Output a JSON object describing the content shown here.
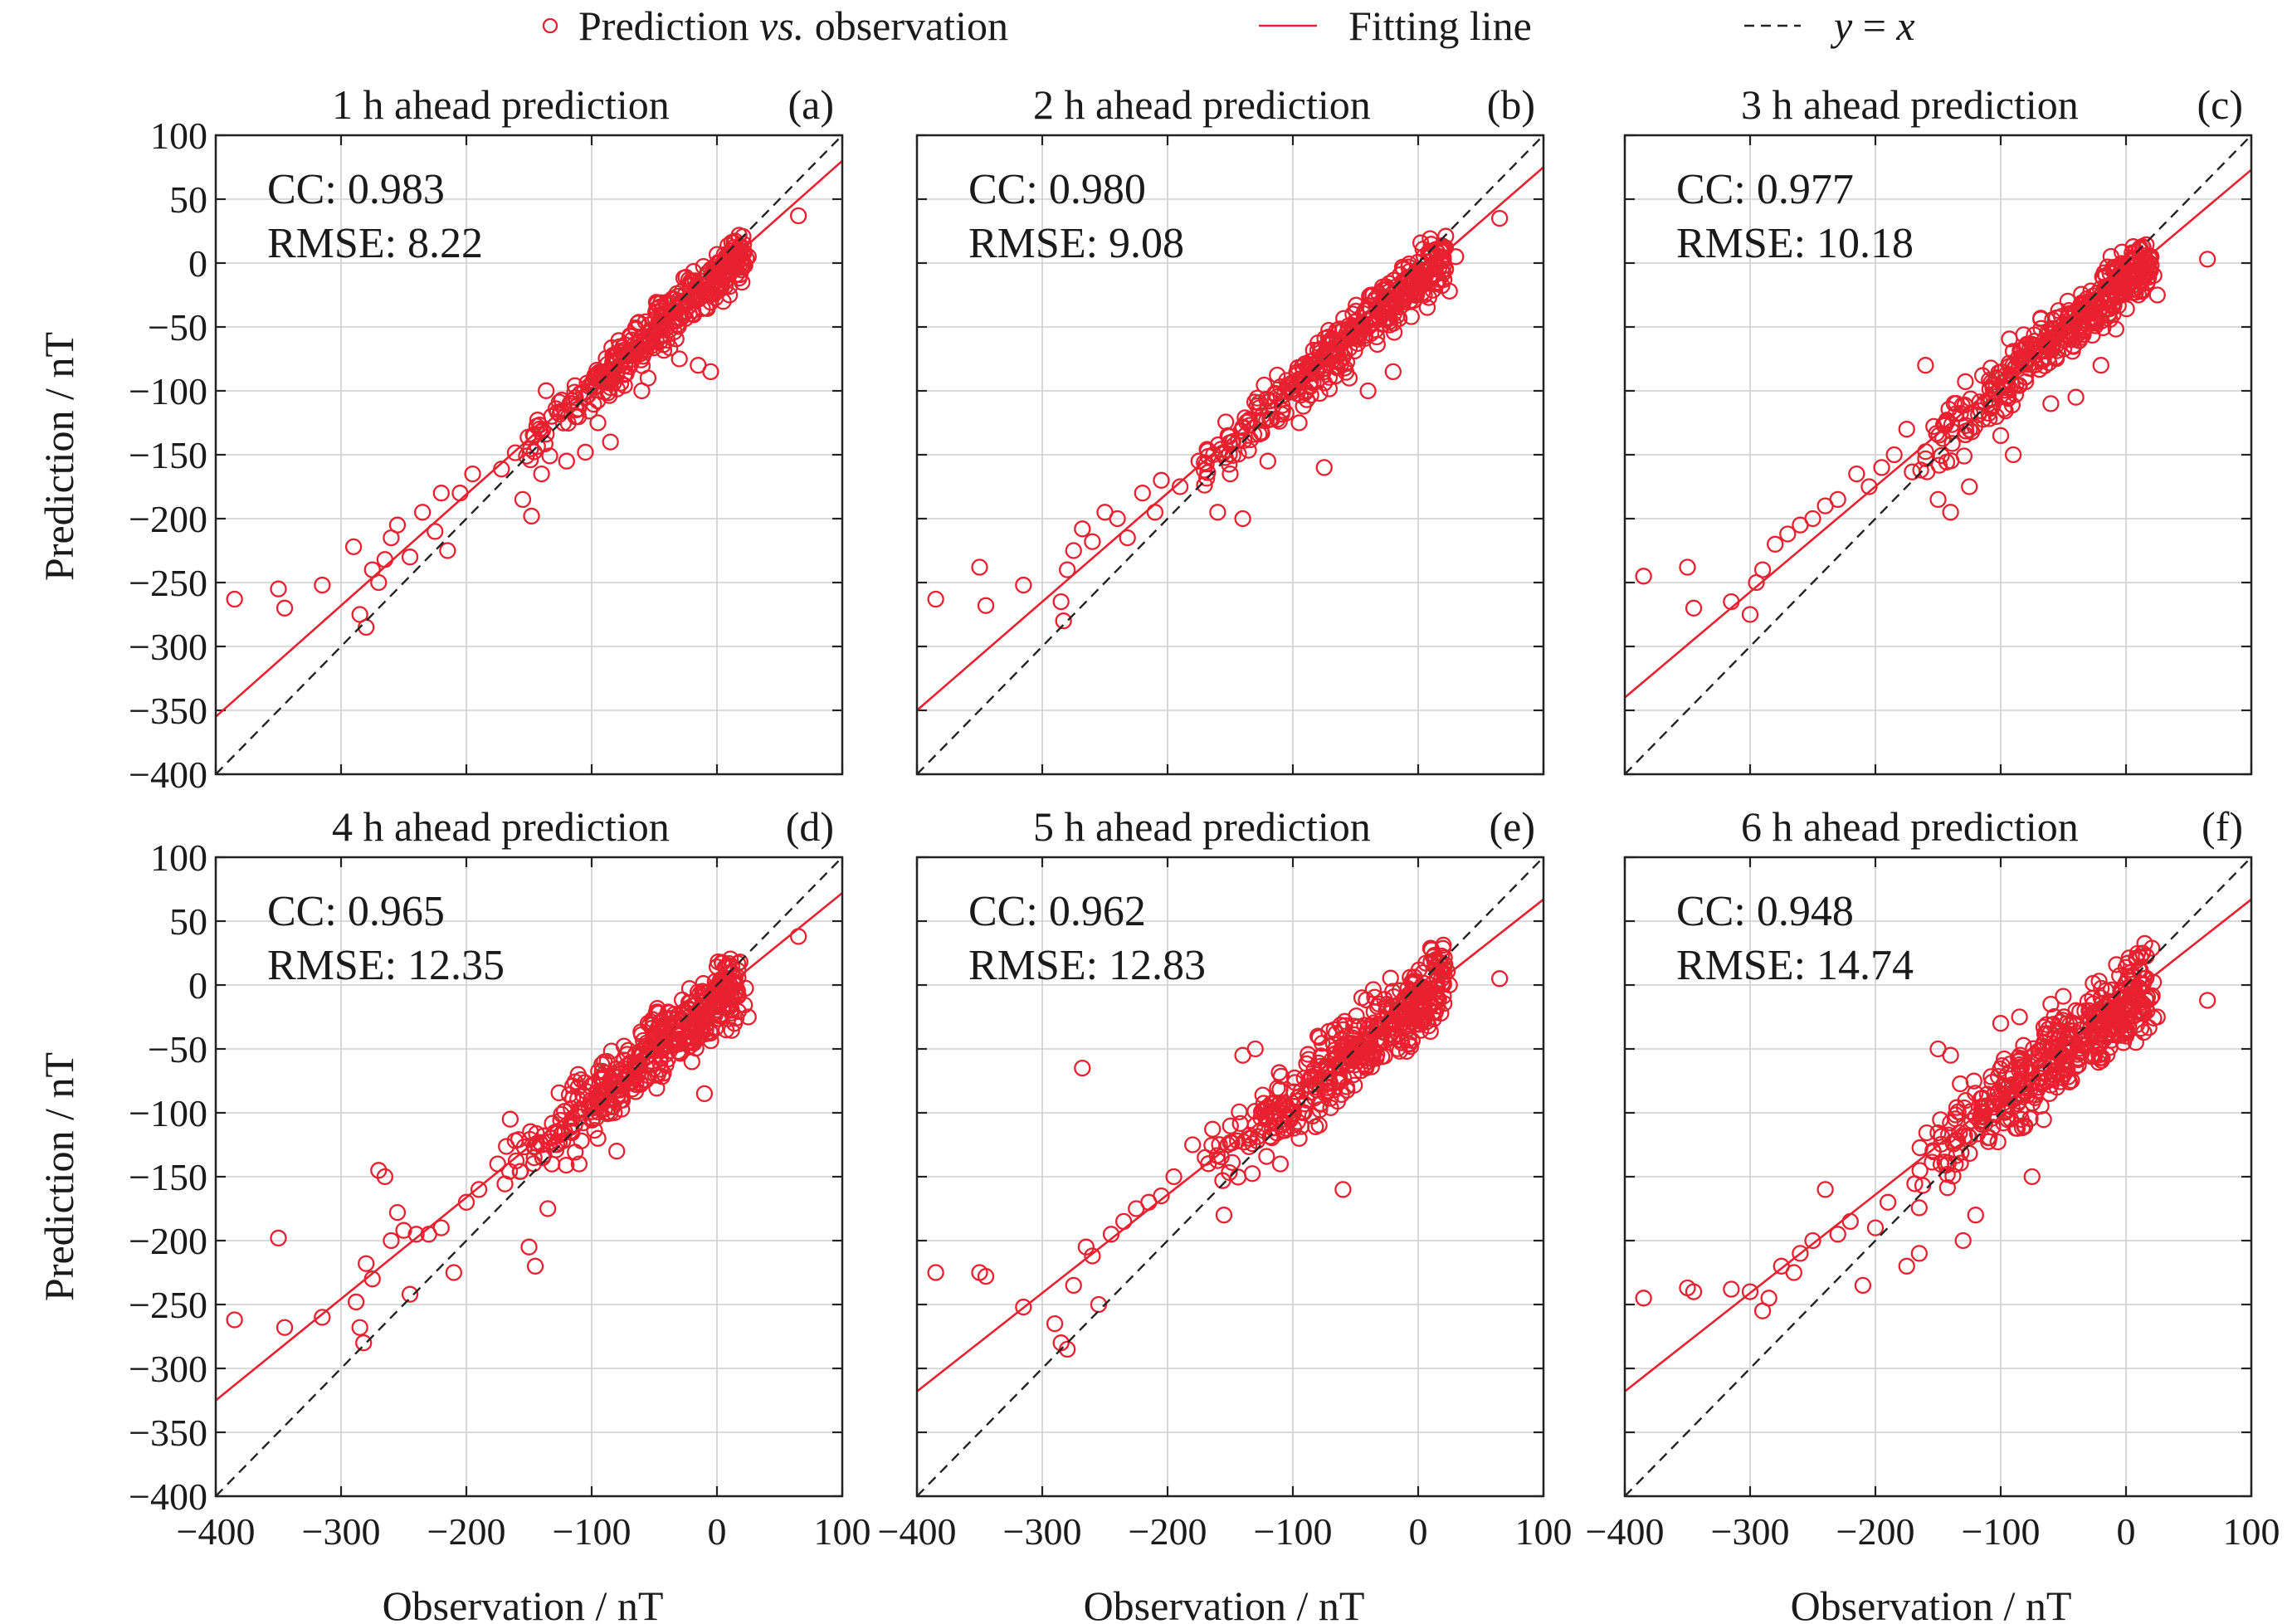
{
  "legend": {
    "points": "Prediction vs. observation",
    "points_prefix": "Prediction ",
    "points_italic": "vs.",
    "points_suffix": " observation",
    "fit": "Fitting line",
    "identity": "y = x",
    "identity_y": "y",
    "identity_eq": " = ",
    "identity_x": "x"
  },
  "colors": {
    "points": "#e8202f",
    "fit": "#e8202f",
    "identity": "#222222",
    "grid": "#cfcfcf"
  },
  "axes": {
    "xlabel": "Observation / nT",
    "ylabel": "Prediction / nT",
    "xlim": [
      -400,
      100
    ],
    "ylim": [
      -400,
      100
    ],
    "xticks": [
      -400,
      -300,
      -200,
      -100,
      0,
      100
    ],
    "yticks": [
      -400,
      -350,
      -300,
      -250,
      -200,
      -150,
      -100,
      -50,
      0,
      50,
      100
    ],
    "xtick_labels": [
      "−400",
      "−300",
      "−200",
      "−100",
      "0",
      "100"
    ],
    "ytick_labels": [
      "−400",
      "−350",
      "−300",
      "−250",
      "−200",
      "−150",
      "−100",
      "−50",
      "0",
      "50",
      "100"
    ],
    "grid": true
  },
  "chart_data": [
    {
      "type": "scatter",
      "panel": "(a)",
      "title": "1 h ahead prediction",
      "cc_text": "CC: 0.983",
      "rmse_text": "RMSE: 8.22",
      "fit": [
        [
          -400,
          -355
        ],
        [
          100,
          80
        ]
      ],
      "anchors": [
        [
          -385,
          -263
        ],
        [
          -350,
          -255
        ],
        [
          -345,
          -270
        ],
        [
          -315,
          -252
        ],
        [
          -290,
          -222
        ],
        [
          -285,
          -275
        ],
        [
          -280,
          -285
        ],
        [
          -275,
          -240
        ],
        [
          -270,
          -250
        ],
        [
          -265,
          -232
        ],
        [
          -260,
          -215
        ],
        [
          -255,
          -205
        ],
        [
          -245,
          -230
        ],
        [
          -235,
          -195
        ],
        [
          -225,
          -210
        ],
        [
          -220,
          -180
        ],
        [
          -215,
          -225
        ],
        [
          -205,
          -180
        ],
        [
          -195,
          -165
        ],
        [
          -155,
          -185
        ],
        [
          -148,
          -198
        ],
        [
          -140,
          -165
        ],
        [
          -120,
          -155
        ],
        [
          -105,
          -148
        ],
        [
          -95,
          -125
        ],
        [
          -85,
          -140
        ],
        [
          -60,
          -100
        ],
        [
          -55,
          -90
        ],
        [
          -30,
          -75
        ],
        [
          -15,
          -80
        ],
        [
          -5,
          -85
        ],
        [
          5,
          -30
        ],
        [
          10,
          -25
        ],
        [
          20,
          -15
        ],
        [
          25,
          5
        ],
        [
          65,
          37
        ]
      ],
      "cloud": {
        "n": 380,
        "x_range": [
          -180,
          20
        ],
        "slope": 0.87,
        "intercept": -10,
        "spread": 9,
        "seed": 11
      }
    },
    {
      "type": "scatter",
      "panel": "(b)",
      "title": "2 h ahead prediction",
      "cc_text": "CC: 0.980",
      "rmse_text": "RMSE: 9.08",
      "fit": [
        [
          -400,
          -350
        ],
        [
          100,
          75
        ]
      ],
      "anchors": [
        [
          -385,
          -263
        ],
        [
          -350,
          -238
        ],
        [
          -345,
          -268
        ],
        [
          -315,
          -252
        ],
        [
          -285,
          -265
        ],
        [
          -283,
          -280
        ],
        [
          -280,
          -240
        ],
        [
          -275,
          -225
        ],
        [
          -268,
          -208
        ],
        [
          -260,
          -218
        ],
        [
          -250,
          -195
        ],
        [
          -240,
          -200
        ],
        [
          -232,
          -215
        ],
        [
          -220,
          -180
        ],
        [
          -210,
          -195
        ],
        [
          -205,
          -170
        ],
        [
          -190,
          -175
        ],
        [
          -175,
          -155
        ],
        [
          -160,
          -195
        ],
        [
          -150,
          -165
        ],
        [
          -140,
          -200
        ],
        [
          -120,
          -155
        ],
        [
          -95,
          -125
        ],
        [
          -75,
          -160
        ],
        [
          -55,
          -90
        ],
        [
          -40,
          -100
        ],
        [
          -20,
          -85
        ],
        [
          -10,
          -20
        ],
        [
          5,
          -25
        ],
        [
          15,
          -15
        ],
        [
          25,
          -22
        ],
        [
          30,
          5
        ],
        [
          65,
          35
        ]
      ],
      "cloud": {
        "n": 380,
        "x_range": [
          -180,
          20
        ],
        "slope": 0.85,
        "intercept": -12,
        "spread": 10,
        "seed": 22
      }
    },
    {
      "type": "scatter",
      "panel": "(c)",
      "title": "3 h ahead prediction",
      "cc_text": "CC: 0.977",
      "rmse_text": "RMSE: 10.18",
      "fit": [
        [
          -400,
          -340
        ],
        [
          100,
          73
        ]
      ],
      "anchors": [
        [
          -385,
          -245
        ],
        [
          -350,
          -238
        ],
        [
          -345,
          -270
        ],
        [
          -315,
          -265
        ],
        [
          -300,
          -275
        ],
        [
          -295,
          -250
        ],
        [
          -290,
          -240
        ],
        [
          -280,
          -220
        ],
        [
          -270,
          -212
        ],
        [
          -260,
          -205
        ],
        [
          -250,
          -200
        ],
        [
          -240,
          -190
        ],
        [
          -230,
          -185
        ],
        [
          -215,
          -165
        ],
        [
          -205,
          -175
        ],
        [
          -195,
          -160
        ],
        [
          -185,
          -150
        ],
        [
          -175,
          -130
        ],
        [
          -160,
          -80
        ],
        [
          -150,
          -185
        ],
        [
          -140,
          -195
        ],
        [
          -125,
          -175
        ],
        [
          -100,
          -135
        ],
        [
          -90,
          -150
        ],
        [
          -60,
          -110
        ],
        [
          -40,
          -105
        ],
        [
          -20,
          -80
        ],
        [
          -5,
          -20
        ],
        [
          10,
          -25
        ],
        [
          15,
          -10
        ],
        [
          20,
          5
        ],
        [
          25,
          -25
        ],
        [
          65,
          3
        ]
      ],
      "cloud": {
        "n": 400,
        "x_range": [
          -175,
          20
        ],
        "slope": 0.82,
        "intercept": -13,
        "spread": 11,
        "seed": 33
      }
    },
    {
      "type": "scatter",
      "panel": "(d)",
      "title": "4 h ahead prediction",
      "cc_text": "CC: 0.965",
      "rmse_text": "RMSE: 12.35",
      "fit": [
        [
          -400,
          -325
        ],
        [
          100,
          72
        ]
      ],
      "anchors": [
        [
          -385,
          -262
        ],
        [
          -350,
          -198
        ],
        [
          -345,
          -268
        ],
        [
          -315,
          -260
        ],
        [
          -288,
          -248
        ],
        [
          -285,
          -268
        ],
        [
          -282,
          -280
        ],
        [
          -280,
          -218
        ],
        [
          -275,
          -230
        ],
        [
          -270,
          -145
        ],
        [
          -265,
          -150
        ],
        [
          -260,
          -200
        ],
        [
          -255,
          -178
        ],
        [
          -250,
          -192
        ],
        [
          -245,
          -242
        ],
        [
          -240,
          -195
        ],
        [
          -230,
          -195
        ],
        [
          -220,
          -190
        ],
        [
          -210,
          -225
        ],
        [
          -200,
          -170
        ],
        [
          -190,
          -160
        ],
        [
          -175,
          -140
        ],
        [
          -165,
          -105
        ],
        [
          -150,
          -205
        ],
        [
          -145,
          -220
        ],
        [
          -135,
          -175
        ],
        [
          -110,
          -140
        ],
        [
          -95,
          -120
        ],
        [
          -80,
          -130
        ],
        [
          -55,
          -30
        ],
        [
          -35,
          -45
        ],
        [
          -20,
          -60
        ],
        [
          -10,
          -85
        ],
        [
          5,
          5
        ],
        [
          15,
          -5
        ],
        [
          25,
          -25
        ],
        [
          65,
          38
        ]
      ],
      "cloud": {
        "n": 420,
        "x_range": [
          -175,
          20
        ],
        "slope": 0.8,
        "intercept": -12,
        "spread": 13,
        "seed": 44
      }
    },
    {
      "type": "scatter",
      "panel": "(e)",
      "title": "5 h ahead prediction",
      "cc_text": "CC: 0.962",
      "rmse_text": "RMSE: 12.83",
      "fit": [
        [
          -400,
          -318
        ],
        [
          100,
          67
        ]
      ],
      "anchors": [
        [
          -385,
          -225
        ],
        [
          -350,
          -225
        ],
        [
          -345,
          -228
        ],
        [
          -315,
          -252
        ],
        [
          -290,
          -265
        ],
        [
          -285,
          -280
        ],
        [
          -280,
          -285
        ],
        [
          -275,
          -235
        ],
        [
          -268,
          -65
        ],
        [
          -265,
          -205
        ],
        [
          -260,
          -212
        ],
        [
          -255,
          -250
        ],
        [
          -245,
          -195
        ],
        [
          -235,
          -185
        ],
        [
          -225,
          -175
        ],
        [
          -215,
          -170
        ],
        [
          -205,
          -165
        ],
        [
          -195,
          -150
        ],
        [
          -180,
          -125
        ],
        [
          -170,
          -135
        ],
        [
          -155,
          -180
        ],
        [
          -140,
          -55
        ],
        [
          -130,
          -50
        ],
        [
          -110,
          -140
        ],
        [
          -95,
          -120
        ],
        [
          -80,
          -40
        ],
        [
          -60,
          -160
        ],
        [
          -45,
          -10
        ],
        [
          -25,
          -15
        ],
        [
          -10,
          -25
        ],
        [
          5,
          -20
        ],
        [
          15,
          -10
        ],
        [
          25,
          0
        ],
        [
          65,
          5
        ]
      ],
      "cloud": {
        "n": 420,
        "x_range": [
          -175,
          20
        ],
        "slope": 0.78,
        "intercept": -13,
        "spread": 14,
        "seed": 55
      }
    },
    {
      "type": "scatter",
      "panel": "(f)",
      "title": "6 h ahead prediction",
      "cc_text": "CC: 0.948",
      "rmse_text": "RMSE: 14.74",
      "fit": [
        [
          -400,
          -318
        ],
        [
          100,
          67
        ]
      ],
      "anchors": [
        [
          -385,
          -245
        ],
        [
          -350,
          -237
        ],
        [
          -345,
          -240
        ],
        [
          -315,
          -238
        ],
        [
          -300,
          -240
        ],
        [
          -290,
          -255
        ],
        [
          -285,
          -245
        ],
        [
          -275,
          -220
        ],
        [
          -265,
          -225
        ],
        [
          -260,
          -210
        ],
        [
          -250,
          -200
        ],
        [
          -240,
          -160
        ],
        [
          -230,
          -195
        ],
        [
          -220,
          -185
        ],
        [
          -210,
          -235
        ],
        [
          -200,
          -190
        ],
        [
          -190,
          -170
        ],
        [
          -175,
          -220
        ],
        [
          -165,
          -210
        ],
        [
          -150,
          -50
        ],
        [
          -140,
          -55
        ],
        [
          -130,
          -200
        ],
        [
          -120,
          -180
        ],
        [
          -100,
          -30
        ],
        [
          -85,
          -25
        ],
        [
          -75,
          -150
        ],
        [
          -60,
          -15
        ],
        [
          -40,
          -20
        ],
        [
          -20,
          -10
        ],
        [
          0,
          -40
        ],
        [
          10,
          -20
        ],
        [
          20,
          -10
        ],
        [
          25,
          -25
        ],
        [
          65,
          -12
        ]
      ],
      "cloud": {
        "n": 440,
        "x_range": [
          -175,
          20
        ],
        "slope": 0.76,
        "intercept": -14,
        "spread": 16,
        "seed": 66
      }
    }
  ]
}
